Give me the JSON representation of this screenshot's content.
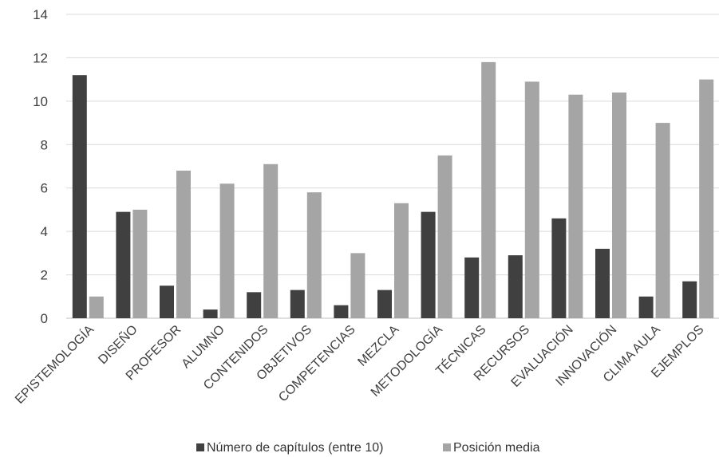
{
  "chart_data": {
    "type": "bar",
    "categories": [
      "EPISTEMOLOGÍA",
      "DISEÑO",
      "PROFESOR",
      "ALUMNO",
      "CONTENIDOS",
      "OBJETIVOS",
      "COMPETENCIAS",
      "MEZCLA",
      "METODOLOGÍA",
      "TÉCNICAS",
      "RECURSOS",
      "EVALUACIÓN",
      "INNOVACIÓN",
      "CLIMA AULA",
      "EJEMPLOS"
    ],
    "series": [
      {
        "name": "Número de capítulos (entre 10)",
        "color": "#404040",
        "values": [
          11.2,
          4.9,
          1.5,
          0.4,
          1.2,
          1.3,
          0.6,
          1.3,
          4.9,
          2.8,
          2.9,
          4.6,
          3.2,
          1.0,
          1.7
        ]
      },
      {
        "name": "Posición media",
        "color": "#a5a5a5",
        "values": [
          1.0,
          5.0,
          6.8,
          6.2,
          7.1,
          5.8,
          3.0,
          5.3,
          7.5,
          11.8,
          10.9,
          10.3,
          10.4,
          9.0,
          11.0
        ]
      }
    ],
    "yticks": [
      "0",
      "2",
      "4",
      "6",
      "8",
      "10",
      "12",
      "14"
    ],
    "ylim": [
      0,
      14
    ],
    "grid": true,
    "legend": "bottom"
  }
}
